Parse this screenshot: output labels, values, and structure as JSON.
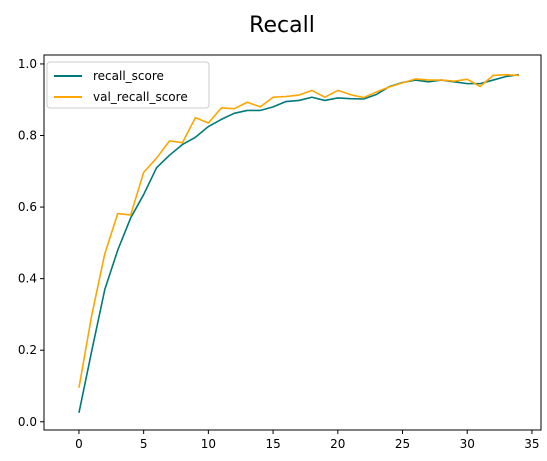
{
  "chart_data": {
    "type": "line",
    "title": "Recall",
    "xlabel": "",
    "ylabel": "",
    "xlim": [
      -2.7,
      35.7
    ],
    "ylim": [
      -0.023,
      1.025
    ],
    "xticks": [
      0,
      5,
      10,
      15,
      20,
      25,
      30,
      35
    ],
    "yticks": [
      0.0,
      0.2,
      0.4,
      0.6,
      0.8,
      1.0
    ],
    "xtick_labels": [
      "0",
      "5",
      "10",
      "15",
      "20",
      "25",
      "30",
      "35"
    ],
    "ytick_labels": [
      "0.0",
      "0.2",
      "0.4",
      "0.6",
      "0.8",
      "1.0"
    ],
    "grid": false,
    "legend_position": "top-left",
    "x": [
      0,
      1,
      2,
      3,
      4,
      5,
      6,
      7,
      8,
      9,
      10,
      11,
      12,
      13,
      14,
      15,
      16,
      17,
      18,
      19,
      20,
      21,
      22,
      23,
      24,
      25,
      26,
      27,
      28,
      29,
      30,
      31,
      32,
      33,
      34
    ],
    "series": [
      {
        "name": "recall_score",
        "color": "#007a78",
        "values": [
          0.025,
          0.2,
          0.37,
          0.48,
          0.57,
          0.635,
          0.71,
          0.745,
          0.775,
          0.795,
          0.825,
          0.845,
          0.862,
          0.87,
          0.87,
          0.88,
          0.895,
          0.898,
          0.907,
          0.898,
          0.905,
          0.903,
          0.902,
          0.915,
          0.937,
          0.948,
          0.955,
          0.95,
          0.955,
          0.95,
          0.945,
          0.945,
          0.955,
          0.965,
          0.97
        ]
      },
      {
        "name": "val_recall_score",
        "color": "#ffa500",
        "values": [
          0.095,
          0.3,
          0.47,
          0.582,
          0.578,
          0.697,
          0.737,
          0.785,
          0.78,
          0.85,
          0.835,
          0.877,
          0.875,
          0.893,
          0.88,
          0.907,
          0.909,
          0.913,
          0.926,
          0.907,
          0.926,
          0.914,
          0.906,
          0.922,
          0.936,
          0.947,
          0.958,
          0.955,
          0.955,
          0.952,
          0.957,
          0.937,
          0.968,
          0.97,
          0.968
        ]
      }
    ]
  }
}
